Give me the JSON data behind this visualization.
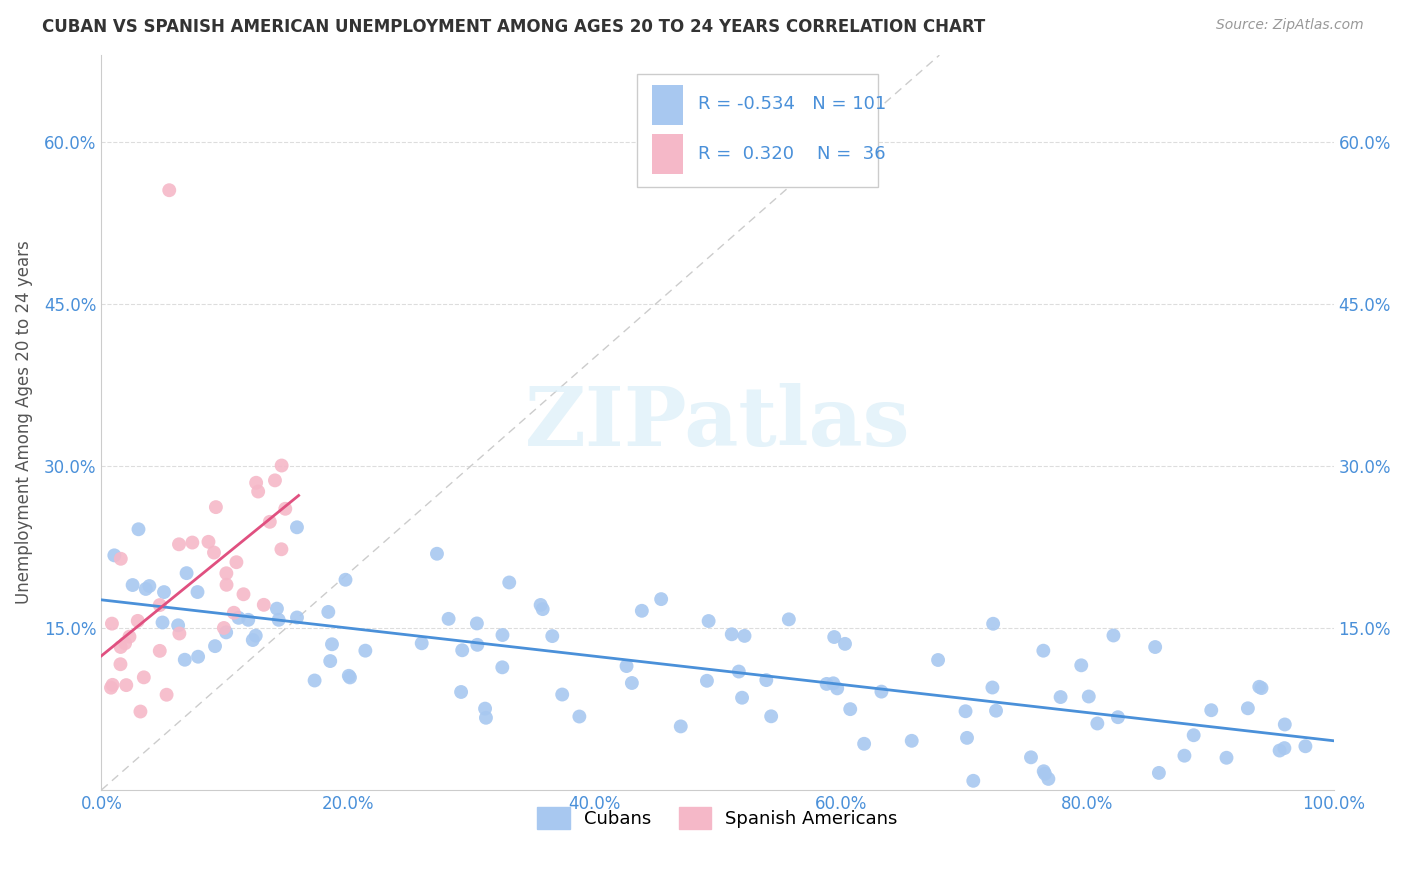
{
  "title": "CUBAN VS SPANISH AMERICAN UNEMPLOYMENT AMONG AGES 20 TO 24 YEARS CORRELATION CHART",
  "source": "Source: ZipAtlas.com",
  "ylabel": "Unemployment Among Ages 20 to 24 years",
  "xlim": [
    0,
    1.0
  ],
  "ylim": [
    0,
    0.68
  ],
  "xticks": [
    0.0,
    0.2,
    0.4,
    0.6,
    0.8,
    1.0
  ],
  "xtick_labels": [
    "0.0%",
    "20.0%",
    "40.0%",
    "60.0%",
    "80.0%",
    "100.0%"
  ],
  "yticks": [
    0.0,
    0.15,
    0.3,
    0.45,
    0.6
  ],
  "ytick_labels": [
    "",
    "15.0%",
    "30.0%",
    "45.0%",
    "60.0%"
  ],
  "legend_r_cuban": "-0.534",
  "legend_n_cuban": "101",
  "legend_r_spanish": "0.320",
  "legend_n_spanish": "36",
  "cuban_color": "#a8c8f0",
  "spanish_color": "#f5b8c8",
  "cuban_line_color": "#4a90d9",
  "spanish_line_color": "#e05080",
  "diag_line_color": "#cccccc",
  "background_color": "#ffffff",
  "grid_color": "#dddddd",
  "title_color": "#333333",
  "source_color": "#999999",
  "axis_label_color": "#555555",
  "tick_color": "#4a90d9",
  "watermark_color": "#daeef8",
  "seed": 42
}
